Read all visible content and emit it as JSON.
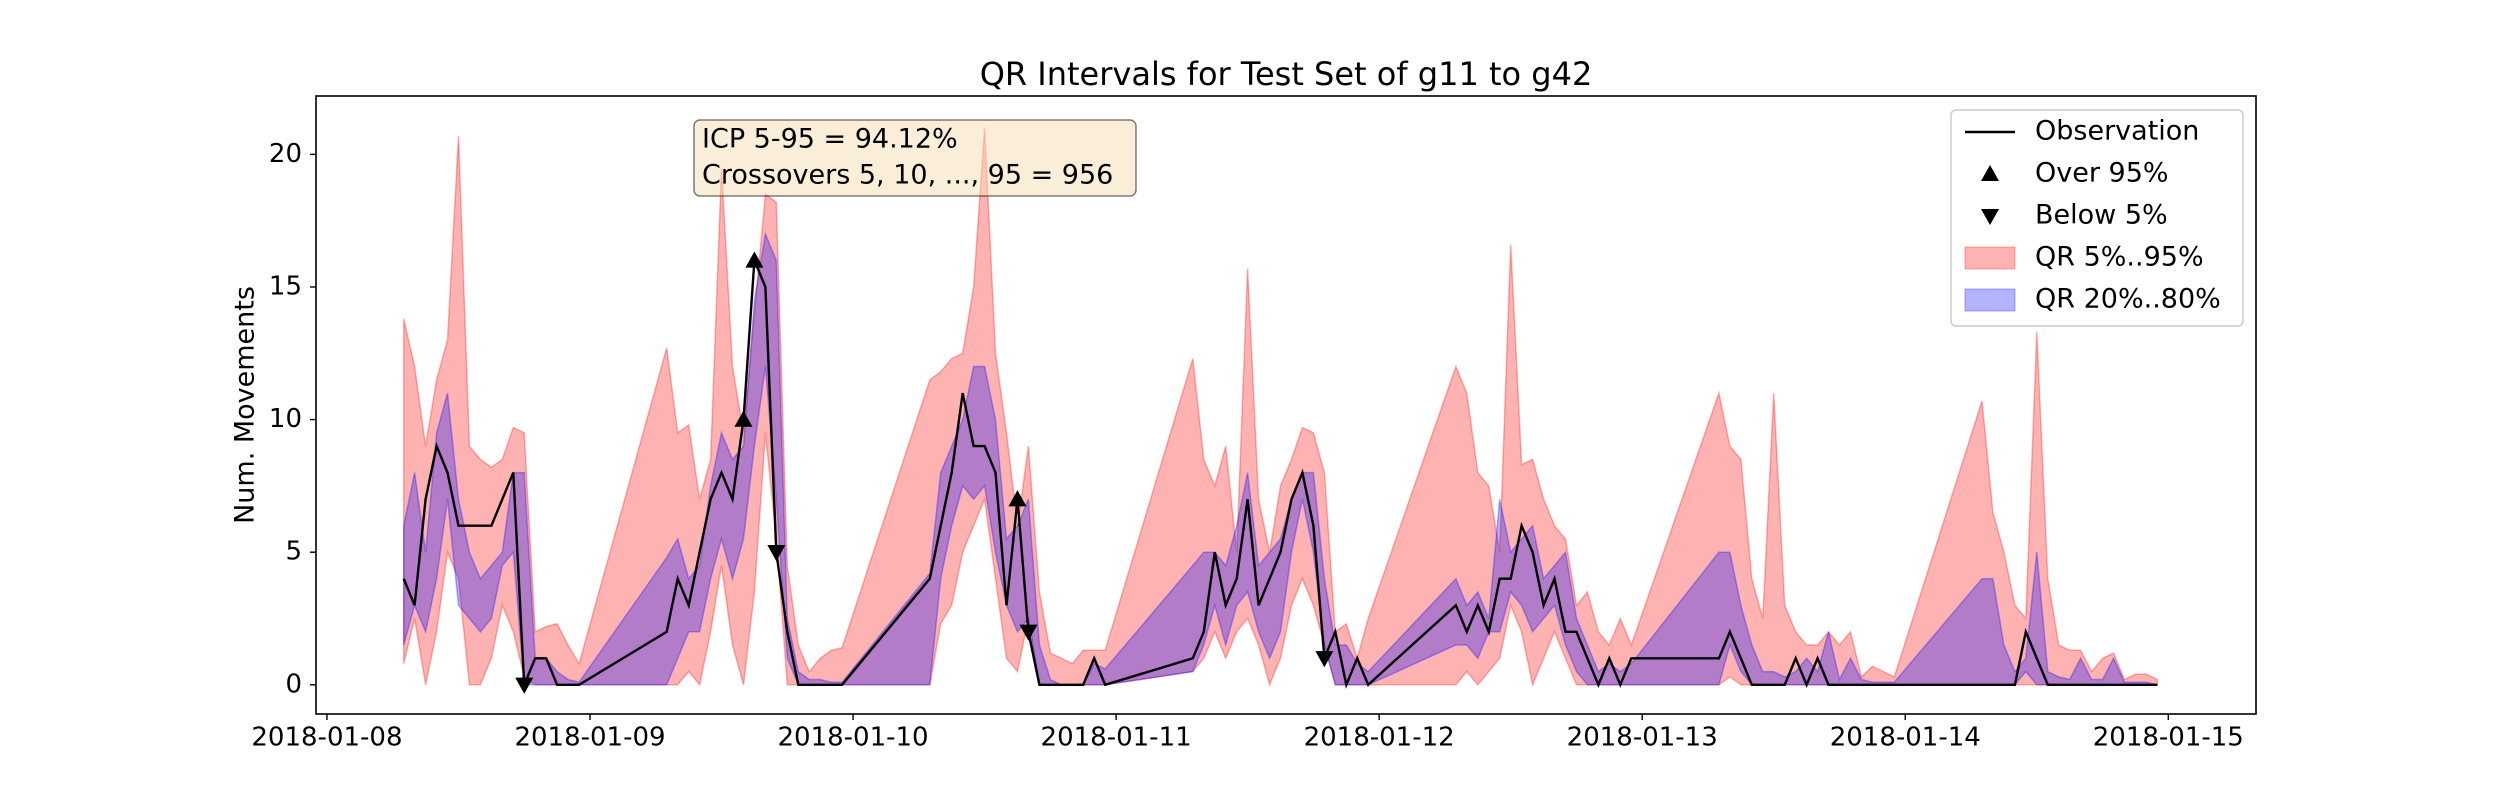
{
  "chart_data": {
    "type": "quantile-band",
    "title": "QR Intervals for Test Set of g11 to g42",
    "ylabel": "Num. Movements",
    "annotation": [
      "ICP 5-95 = 94.12%",
      "Crossovers 5, 10, ..., 95 = 956"
    ],
    "xlim": [
      "2018-01-07 23:00",
      "2018-01-15 08:00"
    ],
    "xticks": [
      "2018-01-08",
      "2018-01-09",
      "2018-01-10",
      "2018-01-11",
      "2018-01-12",
      "2018-01-13",
      "2018-01-14",
      "2018-01-15"
    ],
    "ylim": [
      -1.1,
      22.2
    ],
    "yticks": [
      0,
      5,
      10,
      15,
      20
    ],
    "grid": false,
    "legend": "upper right",
    "x": [
      "2018-01-08 07:00",
      "2018-01-08 08:00",
      "2018-01-08 09:00",
      "2018-01-08 10:00",
      "2018-01-08 11:00",
      "2018-01-08 12:00",
      "2018-01-08 13:00",
      "2018-01-08 14:00",
      "2018-01-08 15:00",
      "2018-01-08 16:00",
      "2018-01-08 17:00",
      "2018-01-08 18:00",
      "2018-01-08 19:00",
      "2018-01-08 20:00",
      "2018-01-08 21:00",
      "2018-01-08 22:00",
      "2018-01-08 23:00",
      "2018-01-09 07:00",
      "2018-01-09 08:00",
      "2018-01-09 09:00",
      "2018-01-09 10:00",
      "2018-01-09 11:00",
      "2018-01-09 12:00",
      "2018-01-09 13:00",
      "2018-01-09 14:00",
      "2018-01-09 15:00",
      "2018-01-09 16:00",
      "2018-01-09 17:00",
      "2018-01-09 18:00",
      "2018-01-09 19:00",
      "2018-01-09 20:00",
      "2018-01-09 21:00",
      "2018-01-09 22:00",
      "2018-01-09 23:00",
      "2018-01-10 07:00",
      "2018-01-10 08:00",
      "2018-01-10 09:00",
      "2018-01-10 10:00",
      "2018-01-10 11:00",
      "2018-01-10 12:00",
      "2018-01-10 13:00",
      "2018-01-10 14:00",
      "2018-01-10 15:00",
      "2018-01-10 16:00",
      "2018-01-10 17:00",
      "2018-01-10 18:00",
      "2018-01-10 19:00",
      "2018-01-10 20:00",
      "2018-01-10 21:00",
      "2018-01-10 22:00",
      "2018-01-10 23:00",
      "2018-01-11 07:00",
      "2018-01-11 08:00",
      "2018-01-11 09:00",
      "2018-01-11 10:00",
      "2018-01-11 11:00",
      "2018-01-11 12:00",
      "2018-01-11 13:00",
      "2018-01-11 14:00",
      "2018-01-11 15:00",
      "2018-01-11 16:00",
      "2018-01-11 17:00",
      "2018-01-11 18:00",
      "2018-01-11 19:00",
      "2018-01-11 20:00",
      "2018-01-11 21:00",
      "2018-01-11 22:00",
      "2018-01-11 23:00",
      "2018-01-12 07:00",
      "2018-01-12 08:00",
      "2018-01-12 09:00",
      "2018-01-12 10:00",
      "2018-01-12 11:00",
      "2018-01-12 12:00",
      "2018-01-12 13:00",
      "2018-01-12 14:00",
      "2018-01-12 15:00",
      "2018-01-12 16:00",
      "2018-01-12 17:00",
      "2018-01-12 18:00",
      "2018-01-12 19:00",
      "2018-01-12 20:00",
      "2018-01-12 21:00",
      "2018-01-12 22:00",
      "2018-01-12 23:00",
      "2018-01-13 07:00",
      "2018-01-13 08:00",
      "2018-01-13 09:00",
      "2018-01-13 10:00",
      "2018-01-13 11:00",
      "2018-01-13 12:00",
      "2018-01-13 13:00",
      "2018-01-13 14:00",
      "2018-01-13 15:00",
      "2018-01-13 16:00",
      "2018-01-13 17:00",
      "2018-01-13 18:00",
      "2018-01-13 19:00",
      "2018-01-13 20:00",
      "2018-01-13 21:00",
      "2018-01-13 22:00",
      "2018-01-13 23:00",
      "2018-01-14 07:00",
      "2018-01-14 08:00",
      "2018-01-14 09:00",
      "2018-01-14 10:00",
      "2018-01-14 11:00",
      "2018-01-14 12:00",
      "2018-01-14 13:00",
      "2018-01-14 14:00",
      "2018-01-14 15:00",
      "2018-01-14 16:00",
      "2018-01-14 17:00",
      "2018-01-14 18:00",
      "2018-01-14 19:00",
      "2018-01-14 20:00",
      "2018-01-14 21:00",
      "2018-01-14 22:00",
      "2018-01-14 23:00"
    ],
    "series": [
      {
        "name": "Observation",
        "color": "#000000",
        "values": [
          4,
          3,
          7,
          9,
          8,
          6,
          6,
          6,
          6,
          7,
          8,
          0,
          1,
          1,
          0,
          0,
          0,
          2,
          4,
          3,
          5,
          7,
          8,
          7,
          10,
          16,
          15,
          5,
          2,
          0,
          0,
          0,
          0,
          0,
          4,
          6,
          8,
          11,
          9,
          9,
          8,
          3,
          7,
          2,
          0,
          0,
          0,
          0,
          0,
          1,
          0,
          1,
          2,
          5,
          3,
          4,
          7,
          3,
          4,
          5,
          7,
          8,
          6,
          1,
          2,
          0,
          1,
          0,
          3,
          2,
          3,
          2,
          4,
          4,
          6,
          5,
          3,
          4,
          2,
          2,
          1,
          0,
          1,
          0,
          1,
          1,
          2,
          1,
          0,
          0,
          0,
          0,
          1,
          0,
          1,
          0,
          0,
          0,
          0,
          0,
          0,
          0,
          0,
          0,
          0,
          0,
          2,
          1,
          0,
          0,
          0,
          0,
          0,
          0,
          0,
          0,
          0,
          0,
          0
        ]
      },
      {
        "name": "QR 5%..95%",
        "color": "#ff0000",
        "alpha": 0.3,
        "lower": [
          0.8,
          2.5,
          0,
          2,
          5,
          4,
          0,
          0,
          1,
          3,
          2,
          0.3,
          0,
          0,
          0,
          0,
          0,
          0,
          0,
          0.5,
          0,
          2,
          4.5,
          1.5,
          0,
          3.5,
          9.5,
          5.5,
          0,
          0,
          0,
          0,
          0,
          0,
          0,
          2.3,
          3,
          5,
          6,
          7,
          4,
          1,
          0.5,
          2.5,
          0,
          0,
          0,
          0,
          0,
          0,
          0,
          0.5,
          1,
          2,
          1,
          2,
          2.5,
          1.5,
          0,
          1,
          3,
          4,
          3,
          1.5,
          0,
          0,
          0,
          0,
          0,
          0.5,
          0,
          0.5,
          1,
          3,
          2,
          0,
          1,
          2,
          1,
          0,
          0,
          0,
          0,
          0,
          0,
          0,
          0.3,
          0,
          0,
          0,
          0,
          0,
          0,
          0,
          0,
          0,
          0,
          0,
          0,
          0,
          0,
          0,
          0,
          0,
          0,
          0,
          0,
          0,
          0,
          0,
          0,
          0,
          0,
          0,
          0,
          0,
          0,
          0,
          0
        ],
        "upper": [
          13.8,
          12,
          9,
          11.5,
          13,
          20.7,
          9,
          8.5,
          8.2,
          8.5,
          9.7,
          9.5,
          2,
          2.2,
          2.3,
          1.5,
          0.8,
          12.7,
          9.5,
          9.8,
          7,
          8.5,
          19.5,
          12,
          9.5,
          14,
          18.5,
          18.2,
          4.5,
          1.5,
          0.5,
          1,
          1.3,
          1.4,
          11.5,
          11.8,
          12.3,
          12.5,
          15,
          21,
          12.5,
          9.5,
          6,
          9,
          3.5,
          1.2,
          1,
          0.8,
          1.3,
          1.3,
          1.3,
          12.3,
          8.5,
          7.5,
          9,
          5,
          15.7,
          7,
          5,
          7.5,
          8.5,
          9.7,
          9.5,
          8,
          2,
          2.3,
          1,
          2.5,
          12,
          11,
          8,
          7.5,
          5,
          16.6,
          8.3,
          8.5,
          7,
          6,
          5.5,
          3,
          3.5,
          2,
          1.5,
          2.5,
          1.5,
          11,
          9,
          8.5,
          4,
          2.5,
          11,
          3,
          2,
          1.5,
          1.5,
          2,
          1.5,
          2,
          0.3,
          0.7,
          0.5,
          0.3,
          10.7,
          6.5,
          5,
          3,
          2.5,
          13.3,
          4,
          1.5,
          1.3,
          1.3,
          0.5,
          1,
          1.2,
          0.2,
          0.4,
          0.4,
          0.2
        ]
      },
      {
        "name": "QR 20%..80%",
        "color": "#0000ff",
        "alpha": 0.3,
        "lower": [
          1.5,
          3,
          2,
          4,
          7,
          3,
          2.5,
          2,
          2.5,
          4.5,
          5,
          0,
          0,
          0,
          0,
          0,
          0,
          0,
          1,
          2,
          2,
          4,
          5.5,
          4,
          5.5,
          9,
          12,
          7,
          1,
          0,
          0,
          0,
          0,
          0,
          0,
          4,
          6,
          7.5,
          7,
          7.5,
          5,
          3,
          2,
          2.5,
          0,
          0,
          0,
          0,
          0,
          0,
          0,
          0.5,
          1.5,
          3,
          1.5,
          3,
          3.5,
          2,
          1,
          2,
          5,
          7,
          5,
          1.5,
          0,
          0,
          0,
          0,
          1.5,
          1.5,
          1,
          2,
          2,
          3.5,
          3,
          2,
          2.5,
          3,
          1.5,
          0.5,
          0,
          0,
          0,
          0,
          0,
          0,
          1.5,
          0.5,
          0,
          0,
          0,
          0,
          0,
          0,
          0,
          0,
          0,
          0,
          0,
          0,
          0,
          0,
          0,
          0,
          0,
          0,
          0.5,
          0,
          0,
          0,
          0,
          0,
          0,
          0,
          0,
          0,
          0,
          0,
          0
        ],
        "upper": [
          6,
          8,
          5,
          9.5,
          11,
          7,
          5,
          4,
          4.5,
          5,
          8,
          8,
          1,
          1,
          0.5,
          0.2,
          0.1,
          4.8,
          5.5,
          4,
          4.5,
          7.5,
          9.5,
          8.5,
          9,
          14.5,
          17,
          16,
          2.5,
          0.5,
          0.2,
          0.2,
          0.1,
          0.1,
          4.2,
          8,
          9,
          10,
          12,
          12,
          10,
          5.5,
          6,
          7,
          1.5,
          0.2,
          0,
          0,
          0,
          0.8,
          0.6,
          4.5,
          5,
          5,
          4.5,
          6,
          8,
          4.5,
          5,
          5.5,
          7,
          8,
          8,
          4,
          1.5,
          1.5,
          0.8,
          0.5,
          4,
          3,
          3.5,
          2.5,
          7,
          5,
          5.5,
          6,
          4,
          4.5,
          5,
          2.5,
          1.5,
          0.5,
          0.8,
          0.5,
          0.8,
          5,
          5,
          3,
          1.5,
          0.5,
          0.5,
          0.3,
          0.5,
          1,
          0.5,
          2,
          0.2,
          1,
          0.2,
          0.1,
          0.1,
          0.1,
          4,
          4,
          1.5,
          0.5,
          1,
          5,
          0.5,
          0.3,
          0.2,
          1,
          0.2,
          0.2,
          1,
          0.1,
          0.1,
          0.1,
          0
        ]
      }
    ],
    "markers": [
      {
        "name": "Over 95%",
        "symbol": "triangle-up",
        "color": "#000000"
      },
      {
        "name": "Below 5%",
        "symbol": "triangle-down",
        "color": "#000000"
      }
    ]
  }
}
